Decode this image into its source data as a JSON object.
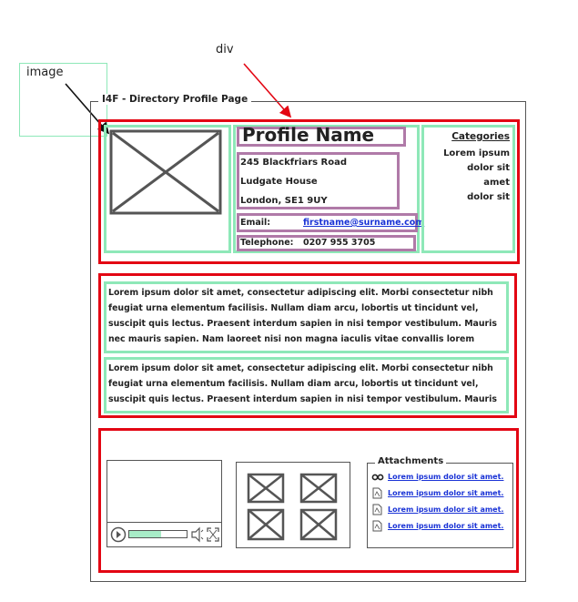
{
  "annotations": {
    "image_label": "image",
    "div_label": "div"
  },
  "page": {
    "title": "I4F - Directory Profile Page"
  },
  "profile": {
    "name": "Profile Name",
    "address": [
      "245 Blackfriars Road",
      "Ludgate House",
      "London, SE1 9UY"
    ],
    "email_label": "Email:",
    "email": "firstname@surname.com",
    "telephone_label": "Telephone:",
    "telephone": "0207 955 3705"
  },
  "categories": {
    "heading": "Categories",
    "items": [
      "Lorem ipsum",
      "dolor sit",
      "amet",
      "dolor sit"
    ]
  },
  "content": {
    "paragraph_1": "Lorem ipsum dolor sit amet, consectetur adipiscing elit. Morbi consectetur nibh feugiat urna elementum facilisis. Nullam diam arcu, lobortis ut tincidunt vel, suscipit quis lectus. Praesent interdum sapien in nisi tempor vestibulum. Mauris nec mauris sapien. Nam laoreet nisi non magna iaculis vitae convallis lorem porttitor.",
    "paragraph_2": "Lorem ipsum dolor sit amet, consectetur adipiscing elit. Morbi consectetur nibh feugiat urna elementum facilisis. Nullam diam arcu, lobortis ut tincidunt vel, suscipit quis lectus. Praesent interdum sapien in nisi tempor vestibulum. Mauris nec mauris"
  },
  "video": {
    "progress": 0.55
  },
  "attachments": {
    "heading": "Attachments",
    "items": [
      "Lorem ipsum dolor sit amet.",
      "Lorem ipsum dolor sit amet.",
      "Lorem ipsum dolor sit amet.",
      "Lorem ipsum dolor sit amet."
    ]
  },
  "colors": {
    "annotation_red": "#e30613",
    "annotation_green": "#8ee8b8",
    "annotation_purple": "#b07aa8",
    "link_blue": "#1a33d6"
  }
}
